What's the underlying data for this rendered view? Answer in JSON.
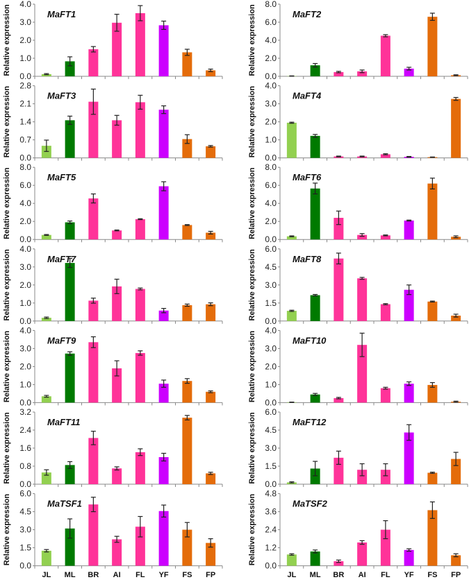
{
  "chart_data": {
    "type": "bar",
    "categories": [
      "JL",
      "ML",
      "BR",
      "AI",
      "FL",
      "YF",
      "FS",
      "FP"
    ],
    "ylabel": "Relative expression",
    "colors": [
      "#92d050",
      "#007a00",
      "#ff3399",
      "#ff3399",
      "#ff3399",
      "#cc00ff",
      "#e46c0a",
      "#e46c0a"
    ],
    "panels": [
      {
        "title": "MaFT1",
        "ylim": [
          0,
          4.0
        ],
        "step": 1.0,
        "dec": 1,
        "values": [
          0.12,
          0.83,
          1.5,
          2.97,
          3.5,
          2.83,
          1.33,
          0.33
        ],
        "errors": [
          0.03,
          0.25,
          0.15,
          0.47,
          0.42,
          0.23,
          0.17,
          0.07
        ]
      },
      {
        "title": "MaFT2",
        "ylim": [
          0,
          8.0
        ],
        "step": 2.0,
        "dec": 1,
        "values": [
          0.03,
          1.22,
          0.47,
          0.55,
          4.5,
          0.85,
          6.6,
          0.12
        ],
        "errors": [
          0.02,
          0.2,
          0.08,
          0.15,
          0.12,
          0.15,
          0.4,
          0.05
        ]
      },
      {
        "title": "MaFT3",
        "ylim": [
          0,
          2.8
        ],
        "step": 0.7,
        "dec": 1,
        "values": [
          0.47,
          1.46,
          2.18,
          1.46,
          2.16,
          1.87,
          0.73,
          0.45
        ],
        "errors": [
          0.22,
          0.16,
          0.49,
          0.19,
          0.27,
          0.15,
          0.17,
          0.03
        ]
      },
      {
        "title": "MaFT4",
        "ylim": [
          0,
          4.0
        ],
        "step": 1.0,
        "dec": 1,
        "values": [
          1.95,
          1.22,
          0.08,
          0.08,
          0.2,
          0.06,
          0.04,
          3.27
        ],
        "errors": [
          0.03,
          0.08,
          0.02,
          0.02,
          0.03,
          0.02,
          0.01,
          0.08
        ]
      },
      {
        "title": "MaFT5",
        "ylim": [
          0,
          8.0
        ],
        "step": 2.0,
        "dec": 1,
        "values": [
          0.5,
          1.9,
          4.55,
          1.0,
          2.25,
          5.9,
          1.6,
          0.75
        ],
        "errors": [
          0.05,
          0.15,
          0.5,
          0.05,
          0.05,
          0.5,
          0.05,
          0.15
        ]
      },
      {
        "title": "MaFT6",
        "ylim": [
          0,
          8.0
        ],
        "step": 2.0,
        "dec": 1,
        "values": [
          0.35,
          5.65,
          2.4,
          0.5,
          0.45,
          2.1,
          6.2,
          0.3
        ],
        "errors": [
          0.05,
          0.6,
          0.75,
          0.15,
          0.05,
          0.05,
          0.6,
          0.1
        ]
      },
      {
        "title": "MaFT7",
        "ylim": [
          0,
          4.0
        ],
        "step": 1.0,
        "dec": 1,
        "values": [
          0.18,
          3.22,
          1.13,
          1.92,
          1.78,
          0.58,
          0.88,
          0.93
        ],
        "errors": [
          0.04,
          0.25,
          0.14,
          0.4,
          0.05,
          0.12,
          0.06,
          0.08
        ]
      },
      {
        "title": "MaFT8",
        "ylim": [
          0,
          6.0
        ],
        "step": 1.5,
        "dec": 1,
        "values": [
          0.85,
          2.15,
          5.2,
          3.55,
          1.4,
          2.6,
          1.62,
          0.45
        ],
        "errors": [
          0.05,
          0.06,
          0.45,
          0.08,
          0.05,
          0.4,
          0.04,
          0.12
        ]
      },
      {
        "title": "MaFT9",
        "ylim": [
          0,
          4.0
        ],
        "step": 1.0,
        "dec": 1,
        "values": [
          0.35,
          2.72,
          3.35,
          1.9,
          2.75,
          1.05,
          1.2,
          0.6
        ],
        "errors": [
          0.05,
          0.1,
          0.3,
          0.42,
          0.12,
          0.2,
          0.13,
          0.05
        ]
      },
      {
        "title": "MaFT10",
        "ylim": [
          0,
          4.0
        ],
        "step": 1.0,
        "dec": 1,
        "values": [
          0.02,
          0.45,
          0.25,
          3.2,
          0.8,
          1.05,
          0.98,
          0.05
        ],
        "errors": [
          0.01,
          0.06,
          0.04,
          0.65,
          0.05,
          0.1,
          0.13,
          0.03
        ]
      },
      {
        "title": "MaFT11",
        "ylim": [
          0,
          3.2
        ],
        "step": 0.8,
        "dec": 1,
        "values": [
          0.52,
          0.85,
          2.05,
          0.7,
          1.42,
          1.2,
          2.95,
          0.48
        ],
        "errors": [
          0.12,
          0.15,
          0.3,
          0.07,
          0.15,
          0.17,
          0.1,
          0.05
        ]
      },
      {
        "title": "MaFT12",
        "ylim": [
          0,
          6.0
        ],
        "step": 1.5,
        "dec": 1,
        "values": [
          0.15,
          1.3,
          2.2,
          1.2,
          1.2,
          4.3,
          0.95,
          2.1
        ],
        "errors": [
          0.05,
          0.6,
          0.55,
          0.5,
          0.5,
          0.65,
          0.05,
          0.55
        ]
      },
      {
        "title": "MaTSF1",
        "ylim": [
          0,
          6.0
        ],
        "step": 1.5,
        "dec": 1,
        "values": [
          1.25,
          3.1,
          5.1,
          2.2,
          3.25,
          4.55,
          3.0,
          1.9
        ],
        "errors": [
          0.1,
          0.8,
          0.6,
          0.25,
          0.85,
          0.5,
          0.6,
          0.35
        ]
      },
      {
        "title": "MaTSF2",
        "ylim": [
          0,
          4.8
        ],
        "step": 1.2,
        "dec": 1,
        "values": [
          0.75,
          0.95,
          0.3,
          1.55,
          2.4,
          1.05,
          3.7,
          0.7
        ],
        "errors": [
          0.05,
          0.1,
          0.08,
          0.12,
          0.6,
          0.08,
          0.55,
          0.1
        ]
      }
    ]
  }
}
